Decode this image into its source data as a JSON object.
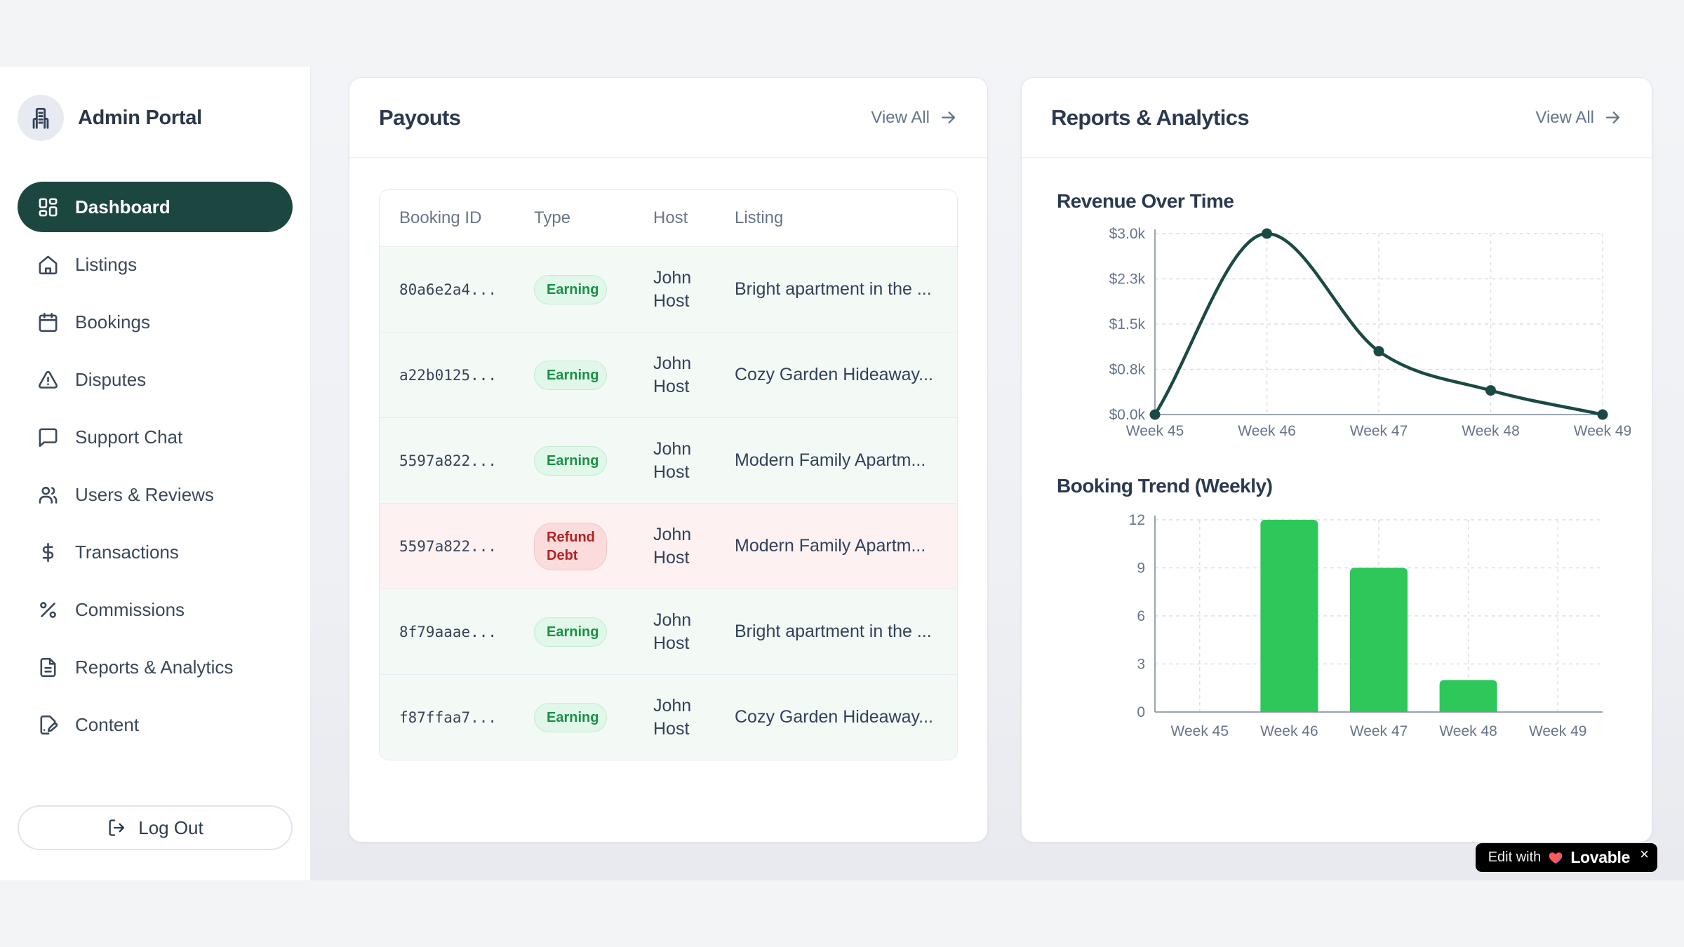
{
  "app": {
    "title": "Admin Portal"
  },
  "sidebar": {
    "items": [
      {
        "label": "Dashboard",
        "icon": "dashboard",
        "active": true
      },
      {
        "label": "Listings",
        "icon": "home",
        "active": false
      },
      {
        "label": "Bookings",
        "icon": "calendar",
        "active": false
      },
      {
        "label": "Disputes",
        "icon": "alert-triangle",
        "active": false
      },
      {
        "label": "Support Chat",
        "icon": "message-square",
        "active": false
      },
      {
        "label": "Users & Reviews",
        "icon": "users",
        "active": false
      },
      {
        "label": "Transactions",
        "icon": "dollar",
        "active": false
      },
      {
        "label": "Commissions",
        "icon": "percent",
        "active": false
      },
      {
        "label": "Reports & Analytics",
        "icon": "file-text",
        "active": false
      },
      {
        "label": "Content",
        "icon": "file-pen",
        "active": false
      }
    ],
    "logout_label": "Log Out"
  },
  "payouts": {
    "title": "Payouts",
    "view_all_label": "View All",
    "table": {
      "headers": [
        "Booking ID",
        "Type",
        "Host",
        "Listing"
      ],
      "rows": [
        {
          "booking_id": "80a6e2a4...",
          "type": "Earning",
          "type_kind": "earning",
          "host": "John Host",
          "listing": "Bright apartment in the ..."
        },
        {
          "booking_id": "a22b0125...",
          "type": "Earning",
          "type_kind": "earning",
          "host": "John Host",
          "listing": "Cozy Garden Hideaway..."
        },
        {
          "booking_id": "5597a822...",
          "type": "Earning",
          "type_kind": "earning",
          "host": "John Host",
          "listing": "Modern Family Apartm..."
        },
        {
          "booking_id": "5597a822...",
          "type": "Refund Debt",
          "type_kind": "refund",
          "host": "John Host",
          "listing": "Modern Family Apartm..."
        },
        {
          "booking_id": "8f79aaae...",
          "type": "Earning",
          "type_kind": "earning",
          "host": "John Host",
          "listing": "Bright apartment in the ..."
        },
        {
          "booking_id": "f87ffaa7...",
          "type": "Earning",
          "type_kind": "earning",
          "host": "John Host",
          "listing": "Cozy Garden Hideaway..."
        }
      ]
    }
  },
  "reports": {
    "title": "Reports & Analytics",
    "view_all_label": "View All"
  },
  "chart_data": [
    {
      "type": "line",
      "title": "Revenue Over Time",
      "x": [
        "Week 45",
        "Week 46",
        "Week 47",
        "Week 48",
        "Week 49"
      ],
      "values": [
        0,
        3000,
        1050,
        400,
        0
      ],
      "y_ticks": [
        0,
        750,
        1500,
        2250,
        3000
      ],
      "y_tick_labels": [
        "$0.0k",
        "$0.8k",
        "$1.5k",
        "$2.3k",
        "$3.0k"
      ],
      "ylim": [
        0,
        3000
      ],
      "xlabel": "",
      "ylabel": "",
      "grid": true,
      "legend": false,
      "line_color": "#1b4a44"
    },
    {
      "type": "bar",
      "title": "Booking Trend (Weekly)",
      "categories": [
        "Week 45",
        "Week 46",
        "Week 47",
        "Week 48",
        "Week 49"
      ],
      "values": [
        0,
        12,
        9,
        2,
        0
      ],
      "y_ticks": [
        0,
        3,
        6,
        9,
        12
      ],
      "y_tick_labels": [
        "0",
        "3",
        "6",
        "9",
        "12"
      ],
      "ylim": [
        0,
        12
      ],
      "xlabel": "",
      "ylabel": "",
      "grid": true,
      "legend": false,
      "bar_color": "#2ec75a"
    }
  ],
  "lovable": {
    "prefix": "Edit with",
    "brand": "Lovable",
    "close": "×"
  },
  "colors": {
    "active_pill": "#1c4741",
    "line": "#1b4a44",
    "bar": "#2ec75a",
    "earning_text": "#1a8f47",
    "refund_text": "#b32323",
    "muted_text": "#64748b"
  }
}
